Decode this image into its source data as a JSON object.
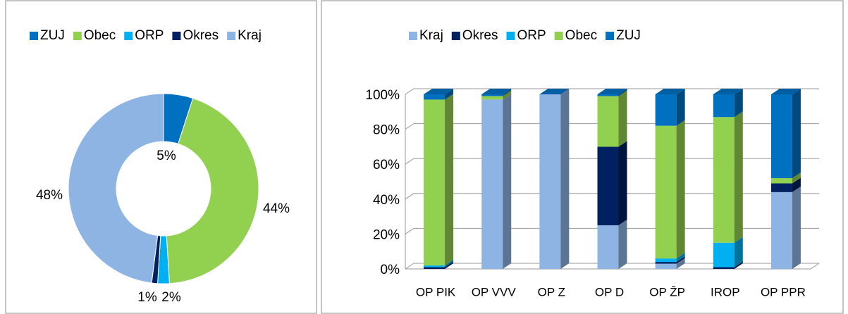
{
  "chart_data": [
    {
      "type": "donut",
      "categories": [
        "ZUJ",
        "Obec",
        "ORP",
        "Okres",
        "Kraj"
      ],
      "values": [
        5,
        44,
        2,
        1,
        48
      ],
      "value_labels": [
        "5%",
        "44%",
        "2%",
        "1%",
        "48%"
      ],
      "colors": [
        "#0070c0",
        "#92d050",
        "#00b0f0",
        "#002060",
        "#8eb4e3"
      ],
      "legend": "top"
    },
    {
      "type": "bar",
      "stacked": true,
      "categories": [
        "OP PIK",
        "OP VVV",
        "OP Z",
        "OP D",
        "OP ŽP",
        "IROP",
        "OP PPR"
      ],
      "series": [
        {
          "name": "Kraj",
          "color": "#8eb4e3",
          "values": [
            0,
            97,
            100,
            25,
            3,
            0,
            44
          ]
        },
        {
          "name": "Okres",
          "color": "#002060",
          "values": [
            1,
            0,
            0,
            45,
            1,
            1,
            5
          ]
        },
        {
          "name": "ORP",
          "color": "#00b0f0",
          "values": [
            1,
            0,
            0,
            0,
            2,
            14,
            0
          ]
        },
        {
          "name": "Obec",
          "color": "#92d050",
          "values": [
            95,
            2,
            0,
            29,
            76,
            72,
            3
          ]
        },
        {
          "name": "ZUJ",
          "color": "#0070c0",
          "values": [
            3,
            1,
            0,
            1,
            18,
            13,
            48
          ]
        }
      ],
      "ylim": [
        0,
        100
      ],
      "yticks": [
        {
          "value": 0,
          "label": "0%"
        },
        {
          "value": 20,
          "label": "20%"
        },
        {
          "value": 40,
          "label": "40%"
        },
        {
          "value": 60,
          "label": "60%"
        },
        {
          "value": 80,
          "label": "80%"
        },
        {
          "value": 100,
          "label": "100%"
        }
      ],
      "grid": true,
      "legend": "top"
    }
  ]
}
